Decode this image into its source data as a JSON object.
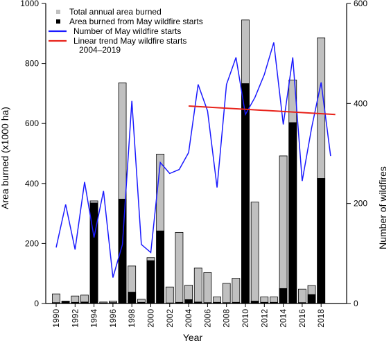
{
  "chart_data": {
    "type": "bar",
    "title": "",
    "xlabel": "Year",
    "ylabel_left": "Area burned (x1000 ha)",
    "ylabel_right": "Number of wildfires",
    "ylim_left": [
      0,
      1000
    ],
    "ylim_right": [
      0,
      600
    ],
    "yticks_left": [
      "0",
      "200",
      "400",
      "600",
      "800",
      "1000"
    ],
    "yticks_right": [
      "0",
      "200",
      "400",
      "600"
    ],
    "years": [
      1990,
      1991,
      1992,
      1993,
      1994,
      1995,
      1996,
      1997,
      1998,
      1999,
      2000,
      2001,
      2002,
      2003,
      2004,
      2005,
      2006,
      2007,
      2008,
      2009,
      2010,
      2011,
      2012,
      2013,
      2014,
      2015,
      2016,
      2017,
      2018,
      2019
    ],
    "x_tick_labels": [
      "1990",
      "1992",
      "1994",
      "1996",
      "1998",
      "2000",
      "2002",
      "2004",
      "2006",
      "2008",
      "2010",
      "2012",
      "2014",
      "2016",
      "2018"
    ],
    "series": [
      {
        "name": "Total annual area burned",
        "kind": "bar",
        "axis": "left",
        "color": "#c0c0c0",
        "values": [
          32,
          8,
          25,
          28,
          342,
          5,
          8,
          735,
          125,
          14,
          153,
          498,
          55,
          237,
          61,
          118,
          103,
          22,
          67,
          84,
          945,
          338,
          22,
          22,
          492,
          745,
          48,
          60,
          885,
          0
        ]
      },
      {
        "name": "Area burned from May wildfire starts",
        "kind": "bar",
        "axis": "left",
        "color": "#000000",
        "values": [
          3,
          6,
          4,
          5,
          335,
          2,
          3,
          348,
          38,
          4,
          143,
          242,
          2,
          4,
          13,
          5,
          3,
          4,
          3,
          4,
          733,
          8,
          4,
          4,
          50,
          603,
          3,
          30,
          417,
          0
        ]
      },
      {
        "name": "Number of May wildfire starts",
        "kind": "line",
        "axis": "right",
        "color": "#1a1aff",
        "x": [
          1990,
          1991,
          1992,
          1993,
          1994,
          1995,
          1996,
          1997,
          1998,
          1999,
          2000,
          2001,
          2002,
          2003,
          2004,
          2005,
          2006,
          2007,
          2008,
          2009,
          2010,
          2011,
          2012,
          2013,
          2014,
          2015,
          2016,
          2017,
          2018,
          2019
        ],
        "values": [
          112,
          198,
          108,
          243,
          132,
          225,
          52,
          118,
          405,
          118,
          102,
          282,
          260,
          268,
          302,
          438,
          385,
          232,
          438,
          492,
          378,
          412,
          458,
          522,
          358,
          492,
          245,
          352,
          442,
          295
        ]
      },
      {
        "name": "Linear trend May wildfire starts\n2004–2019",
        "kind": "trend",
        "axis": "right",
        "color": "#e8231b",
        "x": [
          2004,
          2019.5
        ],
        "values": [
          395,
          378
        ]
      }
    ],
    "legend_position": "top-left",
    "grid": false
  }
}
